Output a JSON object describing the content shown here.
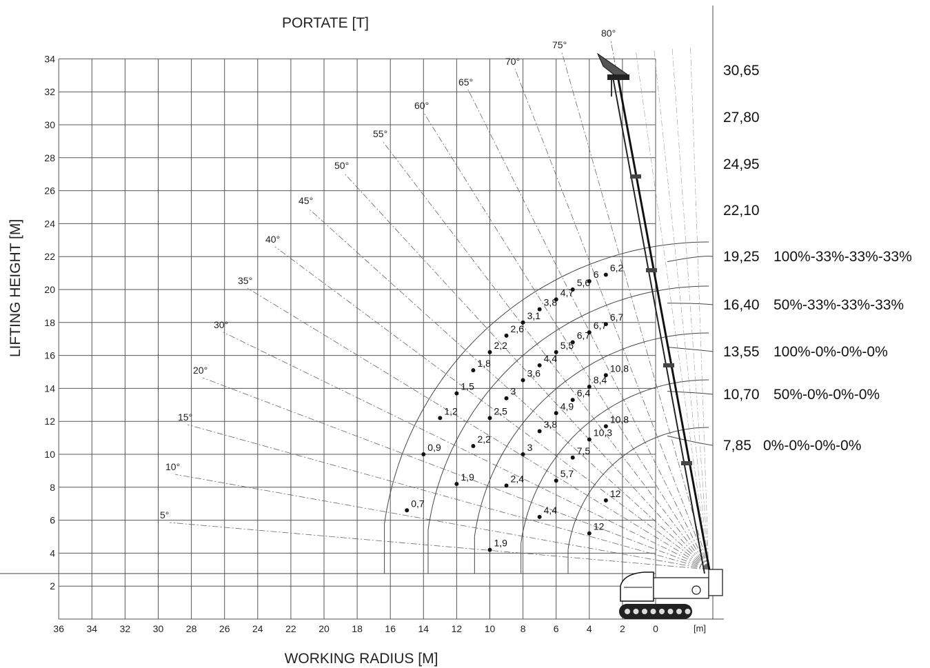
{
  "chart_data": {
    "type": "scatter",
    "title": "PORTATE [T]",
    "xlabel": "WORKING RADIUS [M]",
    "ylabel": "LIFTING HEIGHT [M]",
    "x_unit_label": "[m]",
    "xlim": [
      36,
      0
    ],
    "ylim": [
      0,
      34
    ],
    "x_ticks": [
      36,
      34,
      32,
      30,
      28,
      26,
      24,
      22,
      20,
      18,
      16,
      14,
      12,
      10,
      8,
      6,
      4,
      2,
      0
    ],
    "y_ticks": [
      2,
      4,
      6,
      8,
      10,
      12,
      14,
      16,
      18,
      20,
      22,
      24,
      26,
      28,
      30,
      32,
      34
    ],
    "grid": true,
    "angle_lines": [
      "5°",
      "10°",
      "15°",
      "20°",
      "30°",
      "35°",
      "40°",
      "45°",
      "50°",
      "55°",
      "60°",
      "65°",
      "70°",
      "75°",
      "80°"
    ],
    "boom_lengths": [
      {
        "length": "30,65",
        "config": ""
      },
      {
        "length": "27,80",
        "config": ""
      },
      {
        "length": "24,95",
        "config": ""
      },
      {
        "length": "22,10",
        "config": ""
      },
      {
        "length": "19,25",
        "config": "100%-33%-33%-33%"
      },
      {
        "length": "16,40",
        "config": "50%-33%-33%-33%"
      },
      {
        "length": "13,55",
        "config": "100%-0%-0%-0%"
      },
      {
        "length": "10,70",
        "config": "50%-0%-0%-0%"
      },
      {
        "length": "7,85",
        "config": "0%-0%-0%-0%"
      }
    ],
    "points": [
      {
        "x": 15,
        "y": 6.6,
        "label": "0,7"
      },
      {
        "x": 14,
        "y": 10,
        "label": "0,9"
      },
      {
        "x": 13,
        "y": 12.2,
        "label": "1,2"
      },
      {
        "x": 12,
        "y": 13.7,
        "label": "1,5"
      },
      {
        "x": 11,
        "y": 15.1,
        "label": "1,8"
      },
      {
        "x": 10,
        "y": 16.2,
        "label": "2,2"
      },
      {
        "x": 9,
        "y": 17.2,
        "label": "2,6"
      },
      {
        "x": 8,
        "y": 18,
        "label": "3,1"
      },
      {
        "x": 7,
        "y": 18.8,
        "label": "3,8"
      },
      {
        "x": 6,
        "y": 19.4,
        "label": "4,7"
      },
      {
        "x": 5,
        "y": 20,
        "label": "5,6"
      },
      {
        "x": 4,
        "y": 20.5,
        "label": "6"
      },
      {
        "x": 3,
        "y": 20.9,
        "label": "6,2"
      },
      {
        "x": 12,
        "y": 8.2,
        "label": "1,9"
      },
      {
        "x": 11,
        "y": 10.5,
        "label": "2,2"
      },
      {
        "x": 10,
        "y": 12.2,
        "label": "2,5"
      },
      {
        "x": 9,
        "y": 13.4,
        "label": "3"
      },
      {
        "x": 8,
        "y": 14.5,
        "label": "3,6"
      },
      {
        "x": 7,
        "y": 15.4,
        "label": "4,4"
      },
      {
        "x": 6,
        "y": 16.2,
        "label": "5,5"
      },
      {
        "x": 5,
        "y": 16.8,
        "label": "6,7"
      },
      {
        "x": 4,
        "y": 17.4,
        "label": "6,7"
      },
      {
        "x": 3,
        "y": 17.9,
        "label": "6,7"
      },
      {
        "x": 10,
        "y": 4.2,
        "label": "1,9"
      },
      {
        "x": 9,
        "y": 8.1,
        "label": "2,4"
      },
      {
        "x": 8,
        "y": 10,
        "label": "3"
      },
      {
        "x": 7,
        "y": 11.4,
        "label": "3,8"
      },
      {
        "x": 6,
        "y": 12.5,
        "label": "4,9"
      },
      {
        "x": 5,
        "y": 13.3,
        "label": "6,4"
      },
      {
        "x": 4,
        "y": 14.1,
        "label": "8,4"
      },
      {
        "x": 3,
        "y": 14.8,
        "label": "10,8"
      },
      {
        "x": 7,
        "y": 6.2,
        "label": "4,4"
      },
      {
        "x": 6,
        "y": 8.4,
        "label": "5,7"
      },
      {
        "x": 5,
        "y": 9.8,
        "label": "7,5"
      },
      {
        "x": 4,
        "y": 10.9,
        "label": "10,3"
      },
      {
        "x": 3,
        "y": 11.7,
        "label": "10,8"
      },
      {
        "x": 4,
        "y": 5.2,
        "label": "12"
      },
      {
        "x": 3,
        "y": 7.2,
        "label": "12"
      }
    ]
  }
}
